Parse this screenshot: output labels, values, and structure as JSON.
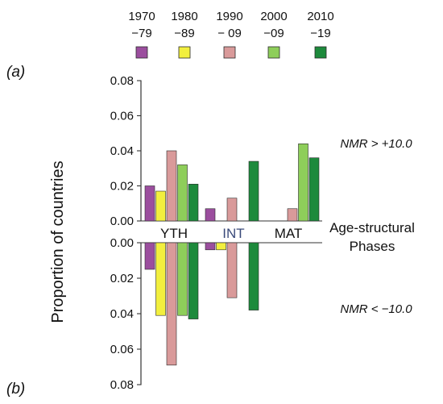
{
  "chart_data": [
    {
      "panel": "(a)",
      "type": "bar",
      "categories": [
        "YTH",
        "INT",
        "MAT"
      ],
      "series": [
        {
          "name": "1970 −79",
          "color": "#9b4e9e",
          "values": [
            0.02,
            0.007,
            null
          ]
        },
        {
          "name": "1980 −89",
          "color": "#f2ef3e",
          "values": [
            0.017,
            null,
            null
          ]
        },
        {
          "name": "1990 −09",
          "color": "#d99a9a",
          "values": [
            0.04,
            0.013,
            0.007
          ]
        },
        {
          "name": "2000 −09",
          "color": "#8ece5a",
          "values": [
            0.032,
            null,
            0.044
          ]
        },
        {
          "name": "2010 −19",
          "color": "#1d8a3c",
          "values": [
            0.021,
            0.034,
            0.036
          ]
        }
      ],
      "ylim": [
        0,
        0.08
      ],
      "yticks": [
        "0.00",
        "0.02",
        "0.04",
        "0.06",
        "0.08"
      ],
      "annotation": "NMR > +10.0"
    },
    {
      "panel": "(b)",
      "type": "bar",
      "categories": [
        "YTH",
        "INT",
        "MAT"
      ],
      "series": [
        {
          "name": "1970 −79",
          "color": "#9b4e9e",
          "values": [
            0.015,
            0.004,
            null
          ]
        },
        {
          "name": "1980 −89",
          "color": "#f2ef3e",
          "values": [
            0.041,
            0.004,
            null
          ]
        },
        {
          "name": "1990 −09",
          "color": "#d99a9a",
          "values": [
            0.069,
            0.031,
            null
          ]
        },
        {
          "name": "2000 −09",
          "color": "#8ece5a",
          "values": [
            0.041,
            null,
            null
          ]
        },
        {
          "name": "2010 −19",
          "color": "#1d8a3c",
          "values": [
            0.043,
            0.038,
            null
          ]
        }
      ],
      "ylim": [
        0,
        0.08
      ],
      "yticks": [
        "0.00",
        "0.02",
        "0.04",
        "0.06",
        "0.08"
      ],
      "annotation": "NMR < −10.0"
    }
  ],
  "legend": [
    {
      "line1": "1970",
      "line2": "−79",
      "color": "#9b4e9e"
    },
    {
      "line1": "1980",
      "line2": "−89",
      "color": "#f2ef3e"
    },
    {
      "line1": "1990",
      "line2": "− 09",
      "color": "#d99a9a"
    },
    {
      "line1": "2000",
      "line2": "−09",
      "color": "#8ece5a"
    },
    {
      "line1": "2010",
      "line2": "−19",
      "color": "#1d8a3c"
    }
  ],
  "ylabel": "Proportion of countries",
  "xlabel_line1": "Age-structural",
  "xlabel_line2": "Phases",
  "category_colors": [
    "#111111",
    "#3a4a7a",
    "#111111"
  ],
  "bar_stroke": "#2b2b2b"
}
